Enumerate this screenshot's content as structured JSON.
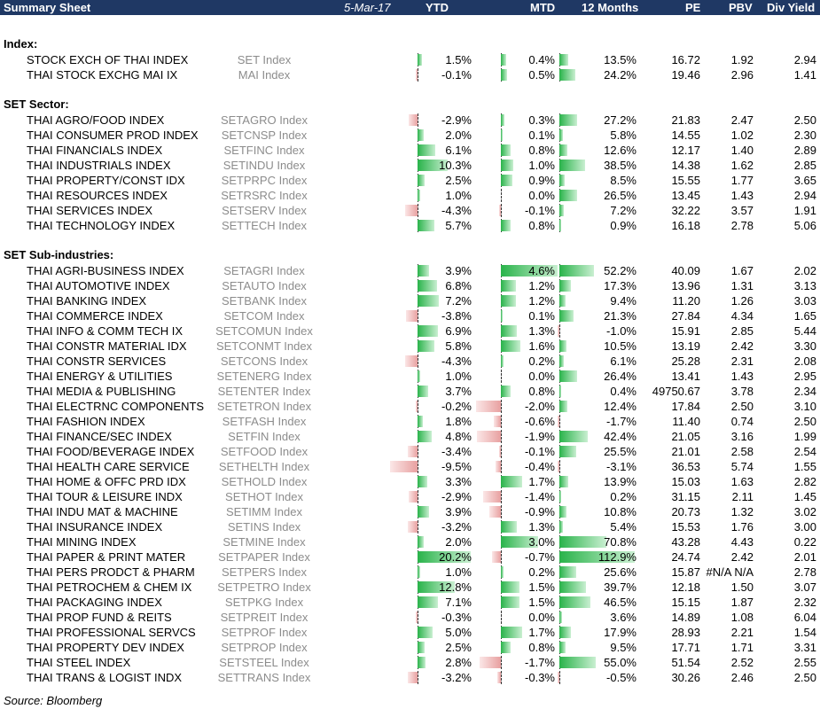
{
  "header": {
    "title": "Summary Sheet",
    "date": "5-Mar-17",
    "columns": [
      "YTD",
      "MTD",
      "12 Months",
      "PE",
      "PBV",
      "Div Yield"
    ]
  },
  "sections": [
    {
      "title": "Index:",
      "rows": [
        [
          "STOCK EXCH OF THAI INDEX",
          "SET Index",
          "1.5%",
          "0.4%",
          "13.5%",
          "16.72",
          "1.92",
          "2.94"
        ],
        [
          "THAI STOCK EXCHG MAI IX",
          "MAI Index",
          "-0.1%",
          "0.5%",
          "24.2%",
          "19.46",
          "2.96",
          "1.41"
        ]
      ]
    },
    {
      "title": "SET Sector:",
      "rows": [
        [
          "THAI AGRO/FOOD INDEX",
          "SETAGRO Index",
          "-2.9%",
          "0.3%",
          "27.2%",
          "21.83",
          "2.47",
          "2.50"
        ],
        [
          "THAI CONSUMER PROD INDEX",
          "SETCNSP Index",
          "2.0%",
          "0.1%",
          "5.8%",
          "14.55",
          "1.02",
          "2.30"
        ],
        [
          "THAI FINANCIALS INDEX",
          "SETFINC Index",
          "6.1%",
          "0.8%",
          "12.6%",
          "12.17",
          "1.40",
          "2.89"
        ],
        [
          "THAI INDUSTRIALS INDEX",
          "SETINDU Index",
          "10.3%",
          "1.0%",
          "38.5%",
          "14.38",
          "1.62",
          "2.85"
        ],
        [
          "THAI PROPERTY/CONST IDX",
          "SETPRPC Index",
          "2.5%",
          "0.9%",
          "8.5%",
          "15.55",
          "1.77",
          "3.65"
        ],
        [
          "THAI RESOURCES INDEX",
          "SETRSRC Index",
          "1.0%",
          "0.0%",
          "26.5%",
          "13.45",
          "1.43",
          "2.94"
        ],
        [
          "THAI SERVICES INDEX",
          "SETSERV Index",
          "-4.3%",
          "-0.1%",
          "7.2%",
          "32.22",
          "3.57",
          "1.91"
        ],
        [
          "THAI TECHNOLOGY INDEX",
          "SETTECH Index",
          "5.7%",
          "0.8%",
          "0.9%",
          "16.18",
          "2.78",
          "5.06"
        ]
      ]
    },
    {
      "title": "SET Sub-industries:",
      "rows": [
        [
          "THAI AGRI-BUSINESS INDEX",
          "SETAGRI Index",
          "3.9%",
          "4.6%",
          "52.2%",
          "40.09",
          "1.67",
          "2.02"
        ],
        [
          "THAI AUTOMOTIVE INDEX",
          "SETAUTO Index",
          "6.8%",
          "1.2%",
          "17.3%",
          "13.96",
          "1.31",
          "3.13"
        ],
        [
          "THAI BANKING INDEX",
          "SETBANK Index",
          "7.2%",
          "1.2%",
          "9.4%",
          "11.20",
          "1.26",
          "3.03"
        ],
        [
          "THAI COMMERCE INDEX",
          "SETCOM Index",
          "-3.8%",
          "0.1%",
          "21.3%",
          "27.84",
          "4.34",
          "1.65"
        ],
        [
          "THAI INFO & COMM TECH IX",
          "SETCOMUN Index",
          "6.9%",
          "1.3%",
          "-1.0%",
          "15.91",
          "2.85",
          "5.44"
        ],
        [
          "THAI CONSTR MATERIAL IDX",
          "SETCONMT Index",
          "5.8%",
          "1.6%",
          "10.5%",
          "13.19",
          "2.42",
          "3.30"
        ],
        [
          "THAI CONSTR SERVICES",
          "SETCONS Index",
          "-4.3%",
          "0.2%",
          "6.1%",
          "25.28",
          "2.31",
          "2.08"
        ],
        [
          "THAI ENERGY & UTILITIES",
          "SETENERG Index",
          "1.0%",
          "0.0%",
          "26.4%",
          "13.41",
          "1.43",
          "2.95"
        ],
        [
          "THAI MEDIA & PUBLISHING",
          "SETENTER Index",
          "3.7%",
          "0.8%",
          "0.4%",
          "49750.67",
          "3.78",
          "2.34"
        ],
        [
          "THAI ELECTRNC COMPONENTS",
          "SETETRON Index",
          "-0.2%",
          "-2.0%",
          "12.4%",
          "17.84",
          "2.50",
          "3.10"
        ],
        [
          "THAI FASHION INDEX",
          "SETFASH Index",
          "1.8%",
          "-0.6%",
          "-1.7%",
          "11.40",
          "0.74",
          "2.50"
        ],
        [
          "THAI FINANCE/SEC INDEX",
          "SETFIN Index",
          "4.8%",
          "-1.9%",
          "42.4%",
          "21.05",
          "3.16",
          "1.99"
        ],
        [
          "THAI FOOD/BEVERAGE INDEX",
          "SETFOOD Index",
          "-3.4%",
          "-0.1%",
          "25.5%",
          "21.01",
          "2.58",
          "2.54"
        ],
        [
          "THAI HEALTH CARE SERVICE",
          "SETHELTH Index",
          "-9.5%",
          "-0.4%",
          "-3.1%",
          "36.53",
          "5.74",
          "1.55"
        ],
        [
          "THAI HOME & OFFC PRD IDX",
          "SETHOLD Index",
          "3.3%",
          "1.7%",
          "13.9%",
          "15.03",
          "1.63",
          "2.82"
        ],
        [
          "THAI TOUR & LEISURE INDX",
          "SETHOT Index",
          "-2.9%",
          "-1.4%",
          "0.2%",
          "31.15",
          "2.11",
          "1.45"
        ],
        [
          "THAI INDU MAT & MACHINE",
          "SETIMM Index",
          "3.9%",
          "-0.9%",
          "10.8%",
          "20.73",
          "1.32",
          "3.02"
        ],
        [
          "THAI INSURANCE INDEX",
          "SETINS Index",
          "-3.2%",
          "1.3%",
          "5.4%",
          "15.53",
          "1.76",
          "3.00"
        ],
        [
          "THAI MINING INDEX",
          "SETMINE Index",
          "2.0%",
          "3.0%",
          "70.8%",
          "43.28",
          "4.43",
          "0.22"
        ],
        [
          "THAI PAPER & PRINT MATER",
          "SETPAPER Index",
          "20.2%",
          "-0.7%",
          "112.9%",
          "24.74",
          "2.42",
          "2.01"
        ],
        [
          "THAI PERS PRODCT & PHARM",
          "SETPERS Index",
          "1.0%",
          "0.2%",
          "25.6%",
          "15.87",
          "#N/A N/A",
          "2.78"
        ],
        [
          "THAI PETROCHEM & CHEM IX",
          "SETPETRO Index",
          "12.8%",
          "1.5%",
          "39.7%",
          "12.18",
          "1.50",
          "3.07"
        ],
        [
          "THAI PACKAGING INDEX",
          "SETPKG Index",
          "7.1%",
          "1.5%",
          "46.5%",
          "15.15",
          "1.87",
          "2.32"
        ],
        [
          "THAI PROP FUND & REITS",
          "SETPREIT Index",
          "-0.3%",
          "0.0%",
          "3.6%",
          "14.89",
          "1.08",
          "6.04"
        ],
        [
          "THAI PROFESSIONAL SERVCS",
          "SETPROF Index",
          "5.0%",
          "1.7%",
          "17.9%",
          "28.93",
          "2.21",
          "1.54"
        ],
        [
          "THAI PROPERTY DEV INDEX",
          "SETPROP Index",
          "2.5%",
          "0.8%",
          "9.5%",
          "17.71",
          "1.71",
          "3.31"
        ],
        [
          "THAI STEEL INDEX",
          "SETSTEEL Index",
          "2.8%",
          "-1.7%",
          "55.0%",
          "51.54",
          "2.52",
          "2.55"
        ],
        [
          "THAI TRANS & LOGIST INDX",
          "SETTRANS Index",
          "-3.2%",
          "-0.3%",
          "-0.5%",
          "30.26",
          "2.46",
          "2.50"
        ]
      ]
    }
  ],
  "source": "Source: Bloomberg"
}
